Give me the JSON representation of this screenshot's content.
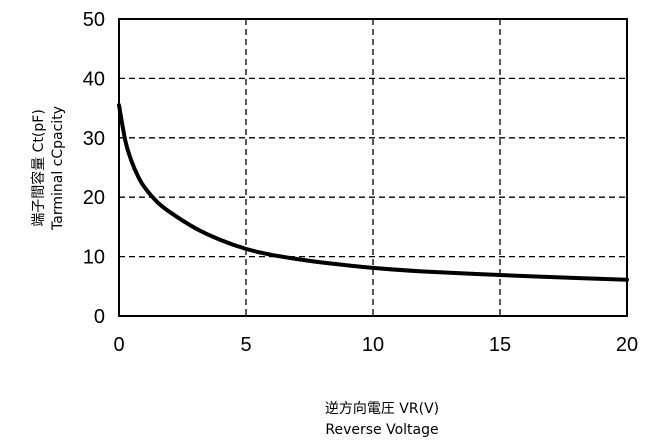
{
  "chart_data": {
    "type": "line",
    "xlabel": [
      "逆方向電圧 VR(V)",
      "Reverse Voltage"
    ],
    "ylabel": [
      "端子間容量 Ct(pF)",
      "Tarminal cCpacity"
    ],
    "xlim": [
      0,
      20
    ],
    "ylim": [
      0,
      50
    ],
    "x_ticks": [
      "0",
      "5",
      "10",
      "15",
      "20"
    ],
    "y_ticks": [
      "0",
      "10",
      "20",
      "30",
      "40",
      "50"
    ],
    "grid": "dashed",
    "series": [
      {
        "x": [
          0,
          0.25,
          0.5,
          0.75,
          1,
          1.5,
          2,
          3,
          4,
          5,
          6,
          7,
          8,
          10,
          12,
          15,
          18,
          20
        ],
        "y": [
          35.5,
          29.5,
          26,
          23.5,
          21.7,
          19.2,
          17.5,
          14.8,
          12.8,
          11.3,
          10.3,
          9.6,
          9.0,
          8.1,
          7.5,
          6.9,
          6.4,
          6.1
        ]
      }
    ]
  }
}
